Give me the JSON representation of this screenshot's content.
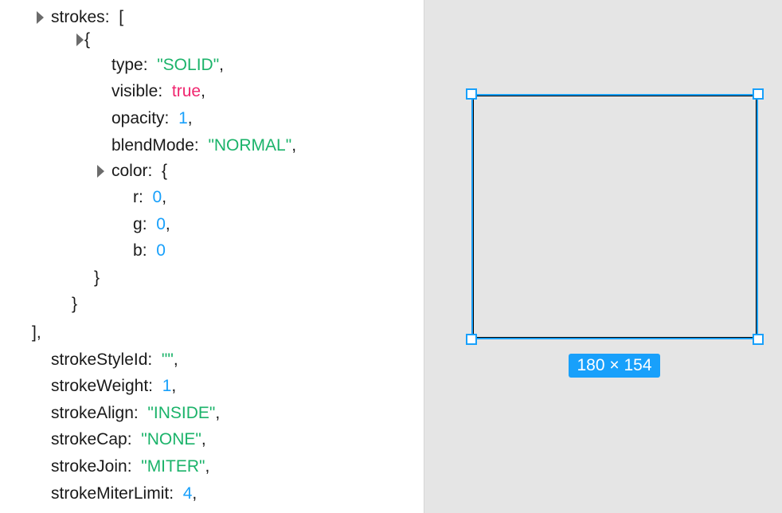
{
  "inspector": {
    "lines": [
      {
        "key": "strokes",
        "value": "[",
        "kind": "plain",
        "suffix": "",
        "expandable": true
      },
      {
        "key": "",
        "value": "{",
        "kind": "plain",
        "suffix": "",
        "expandable": true
      },
      {
        "key": "type",
        "value": "\"SOLID\"",
        "kind": "str",
        "suffix": ","
      },
      {
        "key": "visible",
        "value": "true",
        "kind": "bool",
        "suffix": ","
      },
      {
        "key": "opacity",
        "value": "1",
        "kind": "num",
        "suffix": ","
      },
      {
        "key": "blendMode",
        "value": "\"NORMAL\"",
        "kind": "str",
        "suffix": ","
      },
      {
        "key": "color",
        "value": "{",
        "kind": "plain",
        "suffix": "",
        "expandable": true
      },
      {
        "key": "r",
        "value": "0",
        "kind": "num",
        "suffix": ","
      },
      {
        "key": "g",
        "value": "0",
        "kind": "num",
        "suffix": ","
      },
      {
        "key": "b",
        "value": "0",
        "kind": "num",
        "suffix": ""
      },
      {
        "key": "",
        "value": "}",
        "kind": "plain",
        "suffix": ""
      },
      {
        "key": "",
        "value": "}",
        "kind": "plain",
        "suffix": ""
      },
      {
        "key": "",
        "value": "],",
        "kind": "plain",
        "suffix": ""
      },
      {
        "key": "strokeStyleId",
        "value": "\"\"",
        "kind": "str",
        "suffix": ","
      },
      {
        "key": "strokeWeight",
        "value": "1",
        "kind": "num",
        "suffix": ","
      },
      {
        "key": "strokeAlign",
        "value": "\"INSIDE\"",
        "kind": "str",
        "suffix": ","
      },
      {
        "key": "strokeCap",
        "value": "\"NONE\"",
        "kind": "str",
        "suffix": ","
      },
      {
        "key": "strokeJoin",
        "value": "\"MITER\"",
        "kind": "str",
        "suffix": ","
      },
      {
        "key": "strokeMiterLimit",
        "value": "4",
        "kind": "num",
        "suffix": ","
      }
    ]
  },
  "canvas": {
    "selection_size_label": "180 × 154",
    "selection_color": "#18a0fb"
  },
  "colors": {
    "string": "#1bb36a",
    "number": "#18a0fb",
    "boolean": "#f0266f"
  }
}
